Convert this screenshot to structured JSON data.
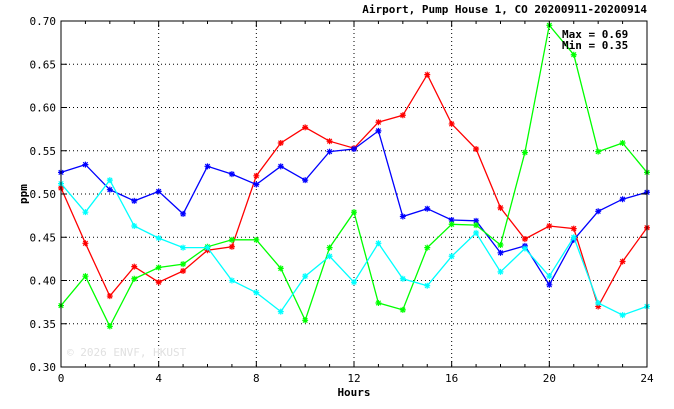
{
  "chart_data": {
    "type": "line",
    "title": "Airport, Pump House 1, CO 20200911-20200914",
    "xlabel": "Hours",
    "ylabel": "ppm",
    "xlim": [
      0,
      24
    ],
    "ylim": [
      0.3,
      0.7
    ],
    "x_ticks": [
      0,
      4,
      8,
      12,
      16,
      20,
      24
    ],
    "x_tick_labels": [
      "0",
      "4",
      "8",
      "12",
      "16",
      "20",
      "24"
    ],
    "y_ticks": [
      0.3,
      0.35,
      0.4,
      0.45,
      0.5,
      0.55,
      0.6,
      0.65,
      0.7
    ],
    "y_tick_labels": [
      "0.30",
      "0.35",
      "0.40",
      "0.45",
      "0.50",
      "0.55",
      "0.60",
      "0.65",
      "0.70"
    ],
    "grid": true,
    "annotations": {
      "max": "Max = 0.69",
      "min": "Min = 0.35"
    },
    "watermark": "© 2026 ENVF, HKUST",
    "x": [
      0,
      1,
      2,
      3,
      4,
      5,
      6,
      7,
      8,
      9,
      10,
      11,
      12,
      13,
      14,
      15,
      16,
      17,
      18,
      19,
      20,
      21,
      22,
      23,
      24
    ],
    "series": [
      {
        "color": "#ff0000",
        "values": [
          0.507,
          0.443,
          0.382,
          0.416,
          0.398,
          0.411,
          0.435,
          0.439,
          0.521,
          0.559,
          0.577,
          0.561,
          0.553,
          0.583,
          0.591,
          0.638,
          0.581,
          0.552,
          0.484,
          0.448,
          0.463,
          0.46,
          0.37,
          0.422,
          0.461
        ]
      },
      {
        "color": "#0000ff",
        "values": [
          0.525,
          0.534,
          0.505,
          0.492,
          0.503,
          0.477,
          0.532,
          0.523,
          0.511,
          0.532,
          0.516,
          0.549,
          0.552,
          0.573,
          0.474,
          0.483,
          0.47,
          0.469,
          0.432,
          0.44,
          0.395,
          0.447,
          0.48,
          0.494,
          0.502
        ]
      },
      {
        "color": "#00ff00",
        "values": [
          0.371,
          0.405,
          0.347,
          0.402,
          0.415,
          0.419,
          0.439,
          0.447,
          0.447,
          0.414,
          0.354,
          0.438,
          0.479,
          0.374,
          0.366,
          0.438,
          0.465,
          0.464,
          0.441,
          0.548,
          0.695,
          0.661,
          0.549,
          0.559,
          0.525
        ]
      },
      {
        "color": "#00ffff",
        "values": [
          0.512,
          0.479,
          0.516,
          0.463,
          0.449,
          0.438,
          0.438,
          0.4,
          0.386,
          0.364,
          0.405,
          0.428,
          0.398,
          0.443,
          0.402,
          0.394,
          0.428,
          0.455,
          0.41,
          0.437,
          0.405,
          0.45,
          0.374,
          0.36,
          0.37
        ]
      }
    ]
  }
}
